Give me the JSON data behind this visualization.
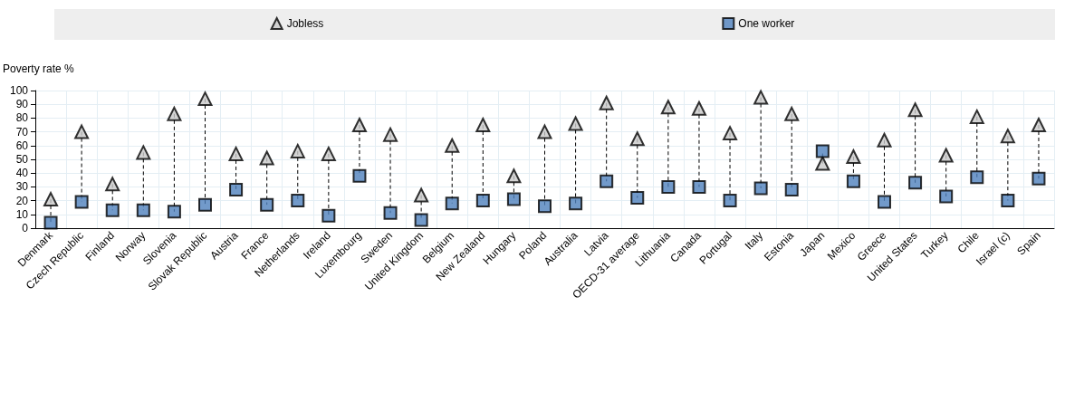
{
  "chart_data": {
    "type": "scatter",
    "ylabel": "Poverty rate %",
    "categories": [
      "Denmark",
      "Czech Republic",
      "Finland",
      "Norway",
      "Slovenia",
      "Slovak Republic",
      "Austria",
      "France",
      "Netherlands",
      "Ireland",
      "Luxembourg",
      "Sweden",
      "United Kingdom",
      "Belgium",
      "New Zealand",
      "Hungary",
      "Poland",
      "Australia",
      "Latvia",
      "OECD-31 average",
      "Lithuania",
      "Canada",
      "Portugal",
      "Italy",
      "Estonia",
      "Japan",
      "Mexico",
      "Greece",
      "United States",
      "Turkey",
      "Chile",
      "Israel (c)",
      "Spain"
    ],
    "series": [
      {
        "name": "Jobless",
        "color": "#c8c8c8",
        "marker": "triangle",
        "values": [
          21,
          70,
          32,
          55,
          83,
          94,
          54,
          51,
          56,
          54,
          75,
          68,
          24,
          60,
          75,
          38,
          70,
          76,
          91,
          65,
          88,
          87,
          69,
          95,
          83,
          47,
          52,
          64,
          86,
          53,
          81,
          67,
          75
        ]
      },
      {
        "name": "One worker",
        "color": "#4f81bd",
        "marker": "square",
        "values": [
          4,
          19,
          13,
          13,
          12,
          17,
          28,
          17,
          20,
          9,
          38,
          11,
          6,
          18,
          20,
          21,
          16,
          18,
          34,
          22,
          30,
          30,
          20,
          29,
          28,
          56,
          34,
          19,
          33,
          23,
          37,
          20,
          36
        ]
      }
    ],
    "ylim": [
      0,
      100
    ],
    "yticks": [
      0,
      10,
      20,
      30,
      40,
      50,
      60,
      70,
      80,
      90,
      100
    ],
    "grid": true,
    "legend": "top",
    "line_style": "dashed"
  }
}
